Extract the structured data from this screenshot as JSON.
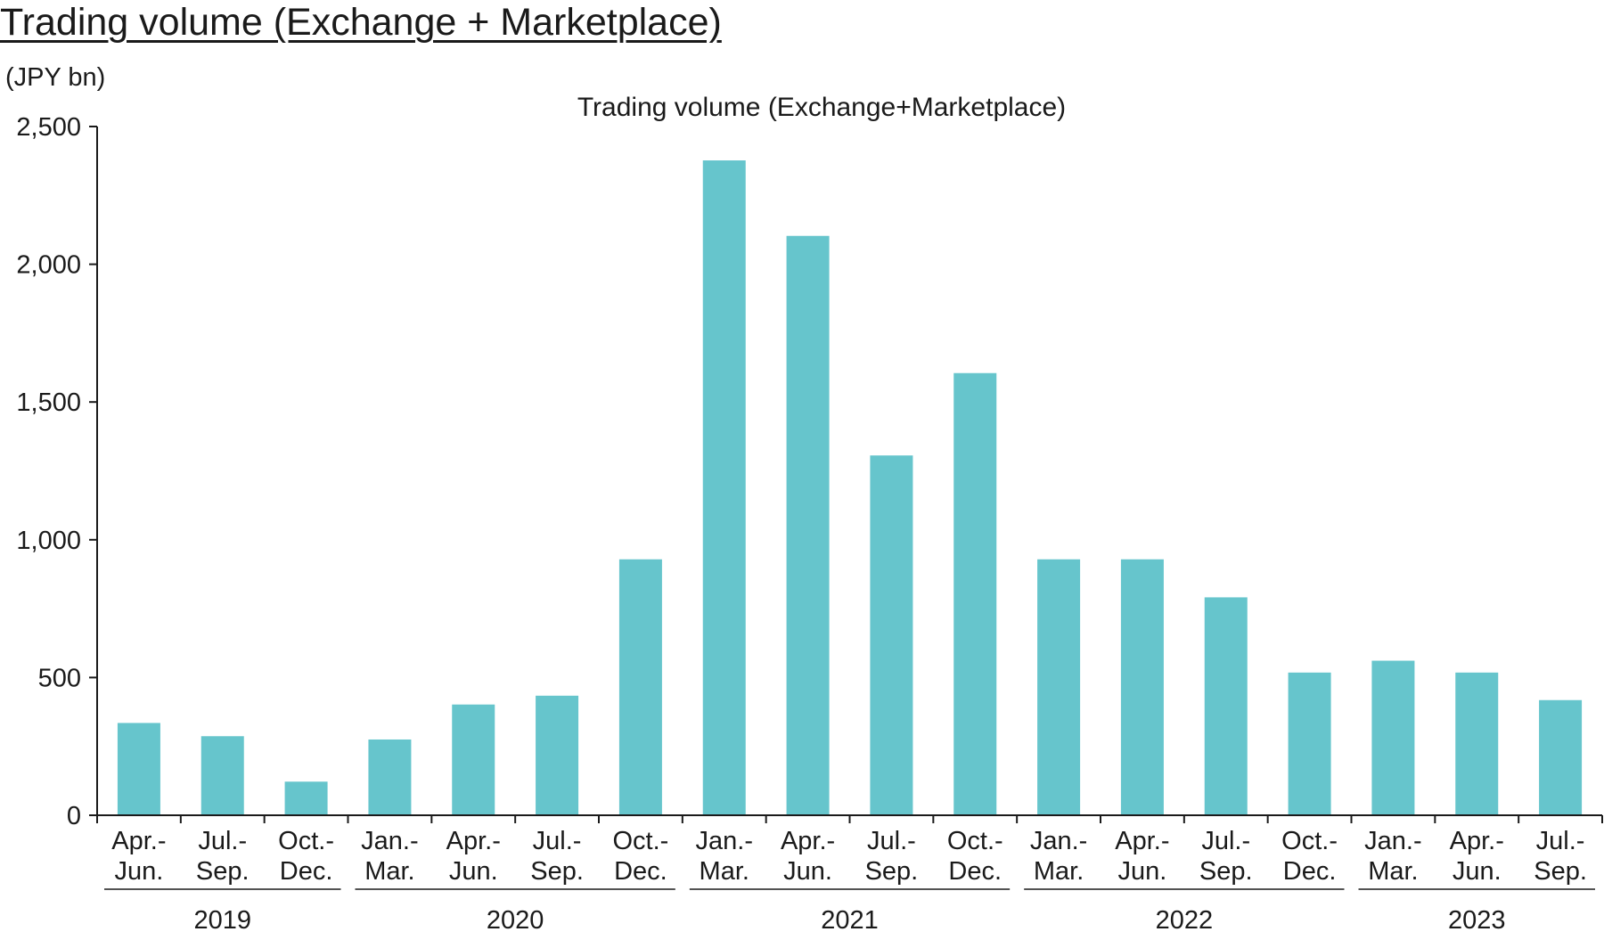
{
  "page": {
    "title": "Trading volume (Exchange + Marketplace)"
  },
  "chart_data": {
    "type": "bar",
    "title": "Trading volume (Exchange+Marketplace)",
    "unit_label": "(JPY bn)",
    "xlabel": "",
    "ylabel": "",
    "ylim": [
      0,
      2500
    ],
    "yticks": [
      0,
      500,
      1000,
      1500,
      2000,
      2500
    ],
    "ytick_labels": [
      "0",
      "500",
      "1,000",
      "1,500",
      "2,000",
      "2,500"
    ],
    "grid": false,
    "legend": "none",
    "bar_color": "#66c5cc",
    "categories": [
      [
        "Apr.-",
        "Jun."
      ],
      [
        "Jul.-",
        "Sep."
      ],
      [
        "Oct.-",
        "Dec."
      ],
      [
        "Jan.-",
        "Mar."
      ],
      [
        "Apr.-",
        "Jun."
      ],
      [
        "Jul.-",
        "Sep."
      ],
      [
        "Oct.-",
        "Dec."
      ],
      [
        "Jan.-",
        "Mar."
      ],
      [
        "Apr.-",
        "Jun."
      ],
      [
        "Jul.-",
        "Sep."
      ],
      [
        "Oct.-",
        "Dec."
      ],
      [
        "Jan.-",
        "Mar."
      ],
      [
        "Apr.-",
        "Jun."
      ],
      [
        "Jul.-",
        "Sep."
      ],
      [
        "Oct.-",
        "Dec."
      ],
      [
        "Jan.-",
        "Mar."
      ],
      [
        "Apr.-",
        "Jun."
      ],
      [
        "Jul.-",
        "Sep."
      ]
    ],
    "values": [
      335,
      287,
      122,
      275,
      402,
      434,
      929,
      2377,
      2103,
      1306,
      1605,
      929,
      929,
      791,
      518,
      561,
      518,
      418
    ],
    "years": [
      {
        "label": "2019",
        "start": 0,
        "end": 2
      },
      {
        "label": "2020",
        "start": 3,
        "end": 6
      },
      {
        "label": "2021",
        "start": 7,
        "end": 10
      },
      {
        "label": "2022",
        "start": 11,
        "end": 14
      },
      {
        "label": "2023",
        "start": 15,
        "end": 17
      }
    ]
  }
}
